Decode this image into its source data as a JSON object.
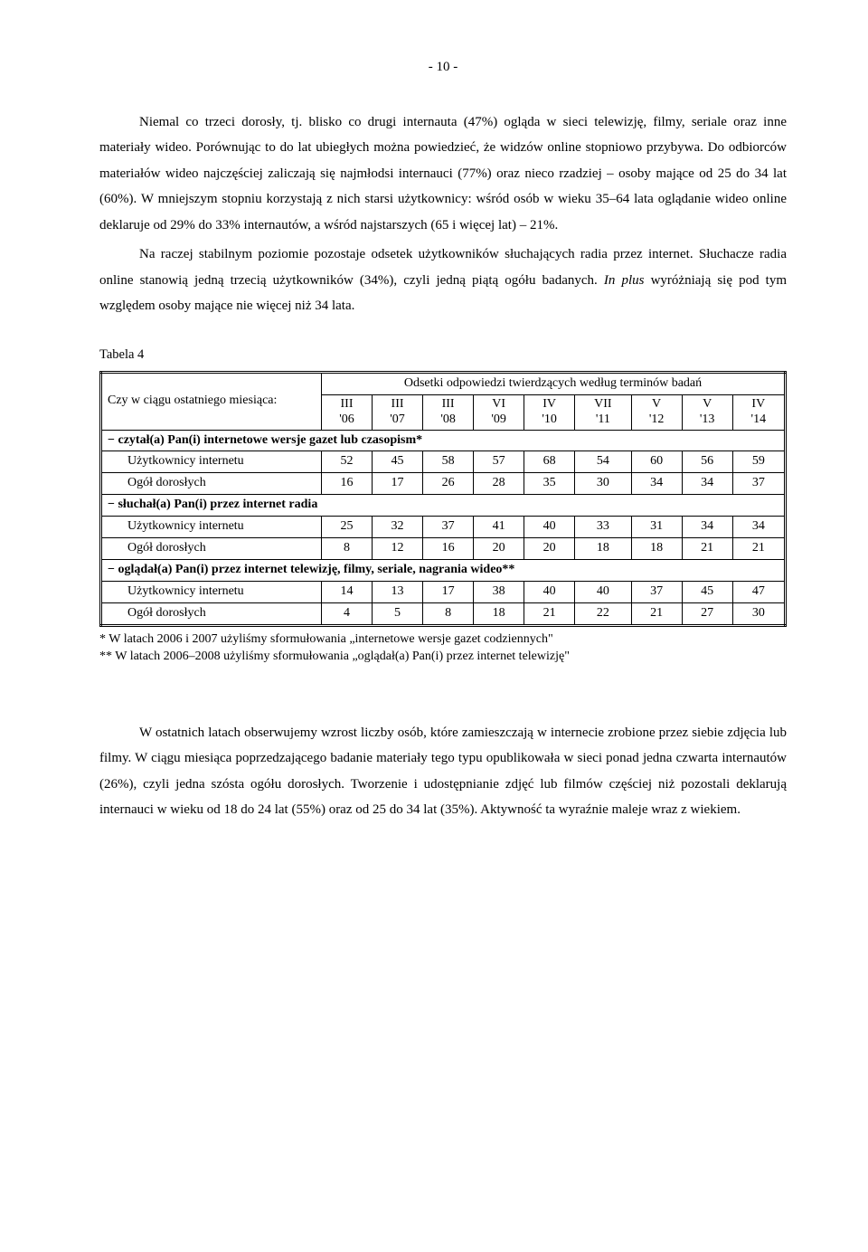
{
  "page_number": "- 10 -",
  "para1": "Niemal co trzeci dorosły, tj. blisko co drugi internauta (47%) ogląda w sieci telewizję, filmy, seriale oraz inne materiały wideo. Porównując to do lat ubiegłych można powiedzieć, że widzów online stopniowo przybywa. Do odbiorców materiałów wideo najczęściej zaliczają się najmłodsi internauci (77%) oraz nieco rzadziej – osoby mające od 25 do 34 lat (60%). W mniejszym stopniu korzystają z nich starsi użytkownicy: wśród osób w wieku 35–64 lata oglądanie wideo online deklaruje od 29% do 33% internautów, a wśród najstarszych (65 i więcej lat) – 21%.",
  "para2a": "Na raczej stabilnym poziomie pozostaje odsetek użytkowników słuchających radia przez internet. Słuchacze radia online stanowią jedną trzecią użytkowników (34%), czyli jedną piątą ogółu badanych. ",
  "para2b": "In plus",
  "para2c": " wyróżniają się pod tym względem osoby mające nie więcej niż 34 lata.",
  "table_label": "Tabela 4",
  "table": {
    "question_label": "Czy w ciągu ostatniego miesiąca:",
    "span_header": "Odsetki odpowiedzi twierdzących  według terminów badań",
    "periods": [
      {
        "m": "III",
        "y": "'06"
      },
      {
        "m": "III",
        "y": "'07"
      },
      {
        "m": "III",
        "y": "'08"
      },
      {
        "m": "VI",
        "y": "'09"
      },
      {
        "m": "IV",
        "y": "'10"
      },
      {
        "m": "VII",
        "y": "'11"
      },
      {
        "m": "V",
        "y": "'12"
      },
      {
        "m": "V",
        "y": "'13"
      },
      {
        "m": "IV",
        "y": "'14"
      }
    ],
    "sections": [
      {
        "title": "− czytał(a) Pan(i) internetowe wersje gazet lub czasopism*",
        "rows": [
          {
            "label": "Użytkownicy internetu",
            "vals": [
              52,
              45,
              58,
              57,
              68,
              54,
              60,
              56,
              59
            ]
          },
          {
            "label": "Ogół dorosłych",
            "vals": [
              16,
              17,
              26,
              28,
              35,
              30,
              34,
              34,
              37
            ]
          }
        ]
      },
      {
        "title": "− słuchał(a) Pan(i) przez internet radia",
        "rows": [
          {
            "label": "Użytkownicy internetu",
            "vals": [
              25,
              32,
              37,
              41,
              40,
              33,
              31,
              34,
              34
            ]
          },
          {
            "label": "Ogół dorosłych",
            "vals": [
              8,
              12,
              16,
              20,
              20,
              18,
              18,
              21,
              21
            ]
          }
        ]
      },
      {
        "title": "− oglądał(a) Pan(i) przez internet telewizję, filmy, seriale, nagrania wideo**",
        "rows": [
          {
            "label": "Użytkownicy internetu",
            "vals": [
              14,
              13,
              17,
              38,
              40,
              40,
              37,
              45,
              47
            ]
          },
          {
            "label": "Ogół dorosłych",
            "vals": [
              4,
              5,
              8,
              18,
              21,
              22,
              21,
              27,
              30
            ]
          }
        ]
      }
    ]
  },
  "footnote1": "* W latach 2006 i 2007 użyliśmy sformułowania „internetowe wersje gazet codziennych\"",
  "footnote2": "** W latach 2006–2008 użyliśmy sformułowania „oglądał(a) Pan(i) przez internet telewizję\"",
  "para3": "W ostatnich latach obserwujemy wzrost liczby osób, które zamieszczają w internecie zrobione przez siebie zdjęcia lub filmy. W ciągu miesiąca poprzedzającego badanie materiały tego typu opublikowała w sieci ponad jedna czwarta internautów (26%), czyli jedna szósta ogółu dorosłych. Tworzenie i udostępnianie zdjęć lub filmów częściej niż pozostali deklarują internauci w wieku od 18 do 24 lat (55%) oraz od 25 do 34 lat (35%). Aktywność ta wyraźnie maleje wraz z wiekiem."
}
